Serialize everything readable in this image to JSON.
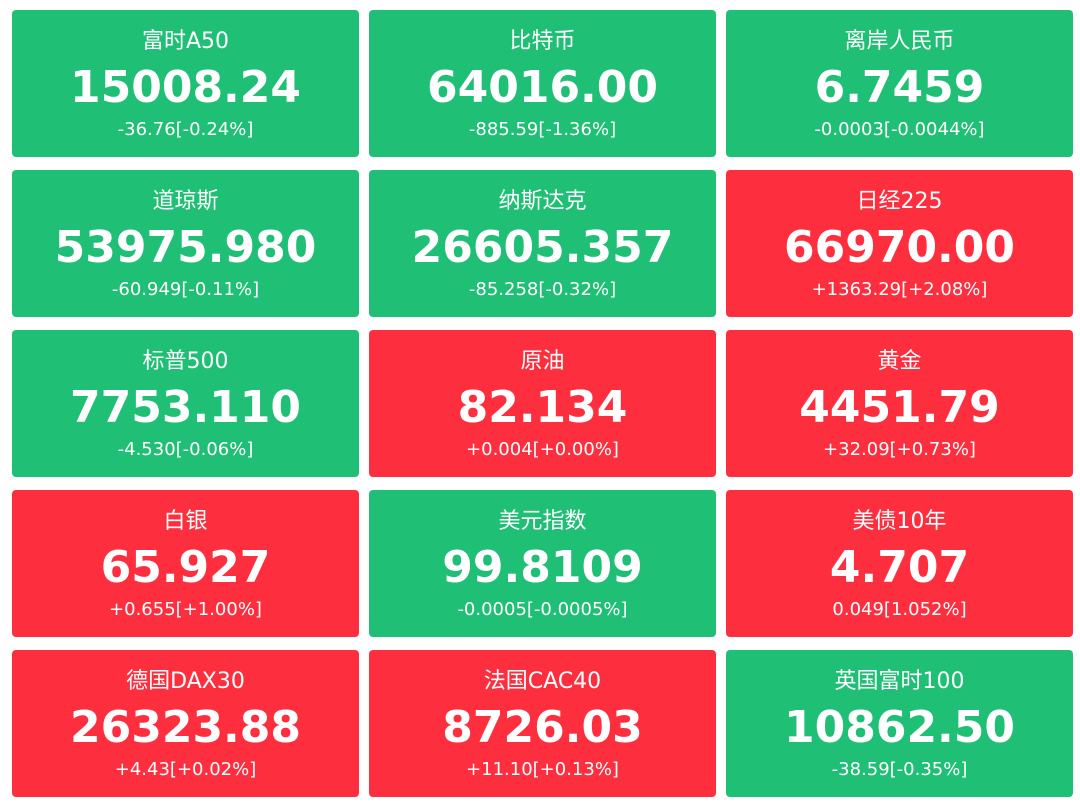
{
  "tiles": [
    {
      "name": "富时A50",
      "value": "15008.24",
      "change": "-36.76[-0.24%]",
      "color": "#1fbf75"
    },
    {
      "name": "比特币",
      "value": "64016.00",
      "change": "-885.59[-1.36%]",
      "color": "#1fbf75"
    },
    {
      "name": "离岸人民币",
      "value": "6.7459",
      "change": "-0.0003[-0.0044%]",
      "color": "#1fbf75"
    },
    {
      "name": "道琼斯",
      "value": "53975.980",
      "change": "-60.949[-0.11%]",
      "color": "#1fbf75"
    },
    {
      "name": "纳斯达克",
      "value": "26605.357",
      "change": "-85.258[-0.32%]",
      "color": "#1fbf75"
    },
    {
      "name": "日经225",
      "value": "66970.00",
      "change": "+1363.29[+2.08%]",
      "color": "#fd2f3f"
    },
    {
      "name": "标普500",
      "value": "7753.110",
      "change": "-4.530[-0.06%]",
      "color": "#1fbf75"
    },
    {
      "name": "原油",
      "value": "82.134",
      "change": "+0.004[+0.00%]",
      "color": "#fd2f3f"
    },
    {
      "name": "黄金",
      "value": "4451.79",
      "change": "+32.09[+0.73%]",
      "color": "#fd2f3f"
    },
    {
      "name": "白银",
      "value": "65.927",
      "change": "+0.655[+1.00%]",
      "color": "#fd2f3f"
    },
    {
      "name": "美元指数",
      "value": "99.8109",
      "change": "-0.0005[-0.0005%]",
      "color": "#1fbf75"
    },
    {
      "name": "美债10年",
      "value": "4.707",
      "change": "0.049[1.052%]",
      "color": "#fd2f3f"
    },
    {
      "name": "德国DAX30",
      "value": "26323.88",
      "change": "+4.43[+0.02%]",
      "color": "#fd2f3f"
    },
    {
      "name": "法国CAC40",
      "value": "8726.03",
      "change": "+11.10[+0.13%]",
      "color": "#fd2f3f"
    },
    {
      "name": "英国富时100",
      "value": "10862.50",
      "change": "-38.59[-0.35%]",
      "color": "#1fbf75"
    }
  ]
}
